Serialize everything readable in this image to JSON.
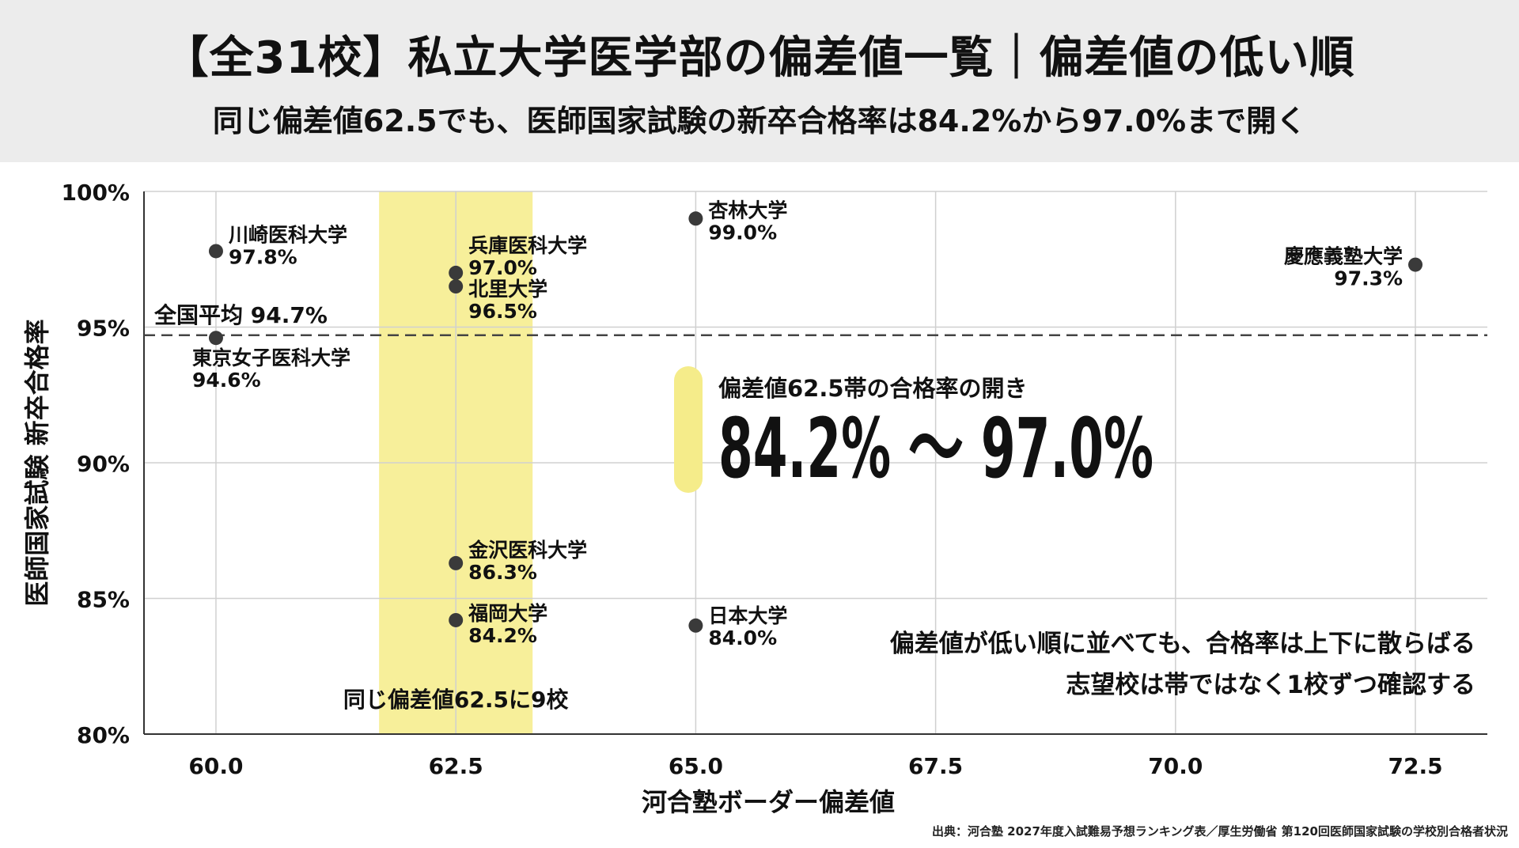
{
  "header": {
    "title": "【全31校】私立大学医学部の偏差値一覧｜偏差値の低い順",
    "subtitle": "同じ偏差値62.5でも、医師国家試験の新卒合格率は84.2%から97.0%まで開く"
  },
  "chart_data": {
    "type": "scatter",
    "xlabel": "河合塾ボーダー偏差値",
    "ylabel": "医師国家試験 新卒合格率",
    "xlim": [
      59.25,
      73.25
    ],
    "ylim": [
      80,
      100
    ],
    "x_ticks": [
      60.0,
      62.5,
      65.0,
      67.5,
      70.0,
      72.5
    ],
    "x_tick_labels": [
      "60.0",
      "62.5",
      "65.0",
      "67.5",
      "70.0",
      "72.5"
    ],
    "y_ticks": [
      80,
      85,
      90,
      95,
      100
    ],
    "y_tick_labels": [
      "80%",
      "85%",
      "90%",
      "95%",
      "100%"
    ],
    "grid": true,
    "points": [
      {
        "name": "川崎医科大学",
        "x": 60.0,
        "y": 97.8,
        "label": "97.8%"
      },
      {
        "name": "東京女子医科大学",
        "x": 60.0,
        "y": 94.6,
        "label": "94.6%"
      },
      {
        "name": "兵庫医科大学",
        "x": 62.5,
        "y": 97.0,
        "label": "97.0%"
      },
      {
        "name": "北里大学",
        "x": 62.5,
        "y": 96.5,
        "label": "96.5%"
      },
      {
        "name": "金沢医科大学",
        "x": 62.5,
        "y": 86.3,
        "label": "86.3%"
      },
      {
        "name": "福岡大学",
        "x": 62.5,
        "y": 84.2,
        "label": "84.2%"
      },
      {
        "name": "杏林大学",
        "x": 65.0,
        "y": 99.0,
        "label": "99.0%"
      },
      {
        "name": "日本大学",
        "x": 65.0,
        "y": 84.0,
        "label": "84.0%"
      },
      {
        "name": "慶應義塾大学",
        "x": 72.5,
        "y": 97.3,
        "label": "97.3%"
      }
    ],
    "reference_line": {
      "y": 94.7,
      "label": "全国平均 94.7%"
    },
    "highlight_band": {
      "x_from": 61.7,
      "x_to": 63.3,
      "label": "同じ偏差値62.5に9校",
      "color": "#f7ef9a"
    },
    "callout": {
      "label": "偏差値62.5帯の合格率の開き",
      "value": "84.2% 〜 97.0%",
      "accent": "#f5ec8a"
    },
    "note_lines": [
      "偏差値が低い順に並べても、合格率は上下に散らばる",
      "志望校は帯ではなく1校ずつ確認する"
    ],
    "colors": {
      "point": "#3a3a3a",
      "grid": "#d0d0d0",
      "axis": "#333333",
      "band": "#f7ef9a"
    }
  },
  "source": "出典：河合塾 2027年度入試難易予想ランキング表／厚生労働省 第120回医師国家試験の学校別合格者状況"
}
